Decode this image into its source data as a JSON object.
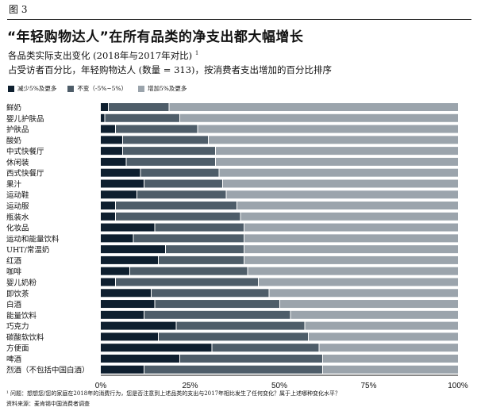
{
  "figure_label": "图 3",
  "chart_data": {
    "type": "bar",
    "orientation": "horizontal",
    "stacked": true,
    "title": "“年轻购物达人”在所有品类的净支出都大幅增长",
    "subtitle": "各品类实际支出变化 (2018年与2017年对比)",
    "subtitle_footnote_mark": "1",
    "subtitle2": "占受访者百分比，年轻购物达人 (数量 = 313)，按消费者支出增加的百分比排序",
    "legend_position": "top-left",
    "xlim": [
      0,
      100
    ],
    "x_ticks": [
      "0%",
      "25%",
      "50%",
      "75%",
      "100%"
    ],
    "grid": false,
    "categories": [
      "鲜奶",
      "婴儿护肤品",
      "护肤品",
      "酸奶",
      "中式快餐厅",
      "休闲装",
      "西式快餐厅",
      "果汁",
      "运动鞋",
      "运动服",
      "瓶装水",
      "化妆品",
      "运动和能量饮料",
      "UHT/常温奶",
      "红酒",
      "咖啡",
      "婴儿奶粉",
      "即饮茶",
      "白酒",
      "能量饮料",
      "巧克力",
      "碳酸软饮料",
      "方便面",
      "啤酒",
      "烈酒（不包括中国白酒）"
    ],
    "series": [
      {
        "name": "减少5%及更多",
        "color": "#0e1f2f",
        "values": [
          2,
          1,
          4,
          6,
          6,
          7,
          11,
          12,
          10,
          4,
          4,
          15,
          9,
          18,
          16,
          8,
          4,
          14,
          15,
          12,
          21,
          16,
          31,
          22,
          12
        ]
      },
      {
        "name": "不变（-5%~5%）",
        "color": "#4e5d69",
        "values": [
          17,
          21,
          23,
          24,
          26,
          25,
          22,
          22,
          25,
          34,
          35,
          25,
          31,
          22,
          24,
          33,
          40,
          33,
          35,
          41,
          36,
          42,
          30,
          40,
          50
        ]
      },
      {
        "name": "增加5%及更多",
        "color": "#9ba4ac",
        "values": [
          81,
          78,
          73,
          70,
          68,
          68,
          67,
          66,
          65,
          62,
          61,
          60,
          60,
          60,
          60,
          59,
          56,
          53,
          50,
          47,
          43,
          42,
          39,
          38,
          38
        ]
      }
    ]
  },
  "footnote": "¹ 问题：想想您/您的家庭在2018年的消费行为，您是否注意到上述品类的支出与2017年相比发生了任何变化？属于上述哪种变化水平？",
  "source": "资料来源：麦肯锡中国消费者调查"
}
